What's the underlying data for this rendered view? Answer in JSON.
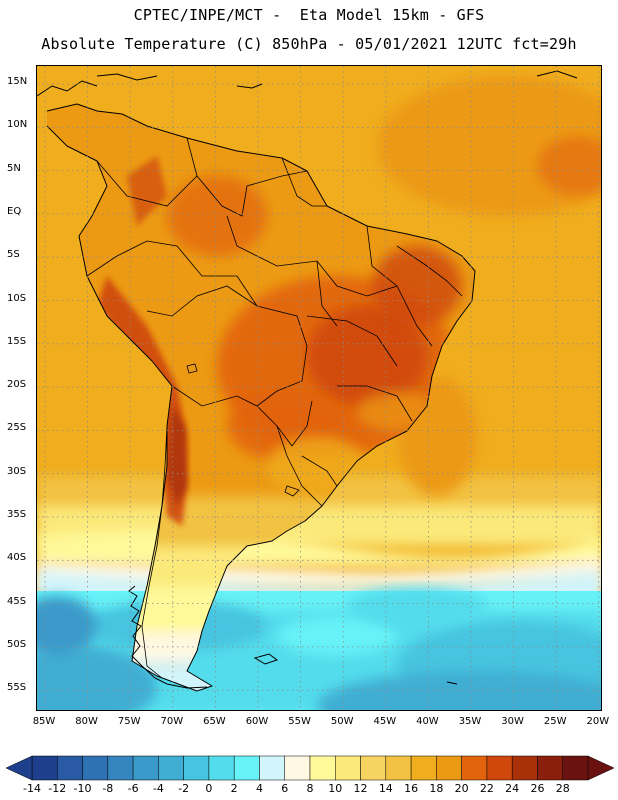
{
  "header": {
    "line1": "CPTEC/INPE/MCT -  Eta Model 15km - GFS",
    "line2": "Absolute Temperature (C) 850hPa - 05/01/2021 12UTC fct=29h"
  },
  "map": {
    "region": "South America",
    "lat_labels": [
      "15N",
      "10N",
      "5N",
      "EQ",
      "5S",
      "10S",
      "15S",
      "20S",
      "25S",
      "30S",
      "35S",
      "40S",
      "45S",
      "50S",
      "55S"
    ],
    "lon_labels": [
      "85W",
      "80W",
      "75W",
      "70W",
      "65W",
      "60W",
      "55W",
      "50W",
      "45W",
      "40W",
      "35W",
      "30W",
      "25W",
      "20W"
    ]
  },
  "legend": {
    "labels": [
      "-14",
      "-12",
      "-10",
      "-8",
      "-6",
      "-4",
      "-2",
      "0",
      "2",
      "4",
      "6",
      "8",
      "10",
      "12",
      "14",
      "16",
      "18",
      "20",
      "22",
      "24",
      "26",
      "28"
    ],
    "colors": [
      "#1d3f8c",
      "#2a5aa3",
      "#2f72b4",
      "#3586bf",
      "#3a9ac9",
      "#40aed3",
      "#47c4df",
      "#53dcec",
      "#66f2f7",
      "#d2f4fb",
      "#fff8e2",
      "#fff99a",
      "#fbe97a",
      "#f5d460",
      "#f2c243",
      "#f0ad1e",
      "#ec9a14",
      "#e2640d",
      "#cf470a",
      "#a9310a",
      "#8a1f0d",
      "#6a1210"
    ]
  }
}
